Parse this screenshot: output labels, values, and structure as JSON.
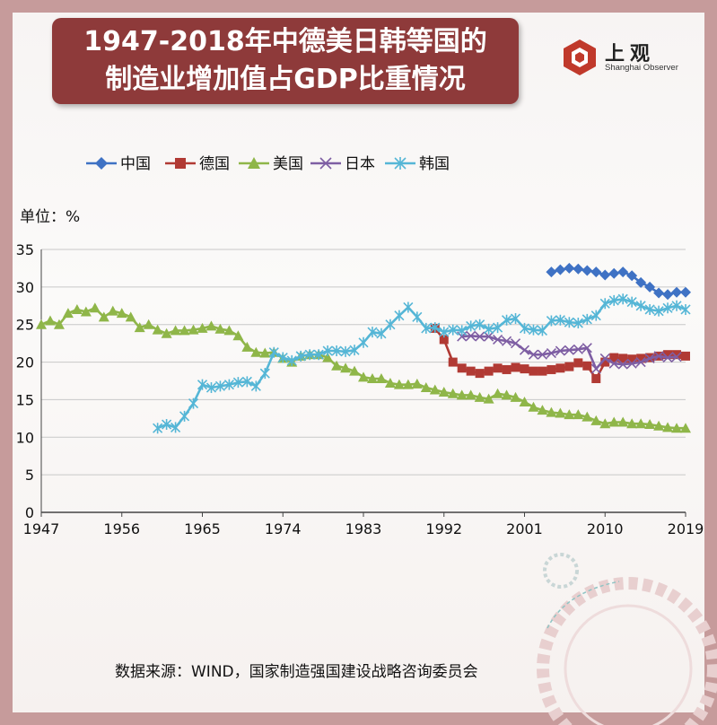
{
  "title": {
    "line1": "1947-2018年中德美日韩等国的",
    "line2": "制造业增加值占GDP比重情况"
  },
  "logo": {
    "name_cn": "上观",
    "name_en": "Shanghai Observer"
  },
  "unit_label": "单位：%",
  "source_text": "数据来源：WIND，国家制造强国建设战略咨询委员会",
  "chart_data": {
    "type": "line",
    "x_ticks": [
      1947,
      1956,
      1965,
      1974,
      1983,
      1992,
      2001,
      2010,
      2019
    ],
    "y_ticks": [
      0,
      5,
      10,
      15,
      20,
      25,
      30,
      35
    ],
    "xlim": [
      1947,
      2019
    ],
    "ylim": [
      0,
      35
    ],
    "grid": true,
    "legend_position": "top",
    "series": [
      {
        "name": "中国",
        "color": "#3f72c4",
        "marker": "diamond",
        "x": [
          2004,
          2005,
          2006,
          2007,
          2008,
          2009,
          2010,
          2011,
          2012,
          2013,
          2014,
          2015,
          2016,
          2017,
          2018,
          2019
        ],
        "y": [
          32.0,
          32.3,
          32.5,
          32.4,
          32.2,
          32.0,
          31.6,
          31.8,
          32.0,
          31.5,
          30.6,
          30.0,
          29.2,
          29.0,
          29.3,
          29.3
        ]
      },
      {
        "name": "德国",
        "color": "#b13a34",
        "marker": "square",
        "x": [
          1991,
          1992,
          1993,
          1994,
          1995,
          1996,
          1997,
          1998,
          1999,
          2000,
          2001,
          2002,
          2003,
          2004,
          2005,
          2006,
          2007,
          2008,
          2009,
          2010,
          2011,
          2012,
          2013,
          2014,
          2015,
          2016,
          2017,
          2018,
          2019
        ],
        "y": [
          24.5,
          23.0,
          20.0,
          19.2,
          18.8,
          18.5,
          18.8,
          19.2,
          19.0,
          19.3,
          19.1,
          18.8,
          18.8,
          19.0,
          19.2,
          19.4,
          19.9,
          19.5,
          17.8,
          20.0,
          20.6,
          20.5,
          20.4,
          20.5,
          20.6,
          20.8,
          21.0,
          21.0,
          20.8
        ]
      },
      {
        "name": "美国",
        "color": "#8fb649",
        "marker": "triangle",
        "x": [
          1947,
          1948,
          1949,
          1950,
          1951,
          1952,
          1953,
          1954,
          1955,
          1956,
          1957,
          1958,
          1959,
          1960,
          1961,
          1962,
          1963,
          1964,
          1965,
          1966,
          1967,
          1968,
          1969,
          1970,
          1971,
          1972,
          1973,
          1974,
          1975,
          1976,
          1977,
          1978,
          1979,
          1980,
          1981,
          1982,
          1983,
          1984,
          1985,
          1986,
          1987,
          1988,
          1989,
          1990,
          1991,
          1992,
          1993,
          1994,
          1995,
          1996,
          1997,
          1998,
          1999,
          2000,
          2001,
          2002,
          2003,
          2004,
          2005,
          2006,
          2007,
          2008,
          2009,
          2010,
          2011,
          2012,
          2013,
          2014,
          2015,
          2016,
          2017,
          2018,
          2019
        ],
        "y": [
          25.0,
          25.5,
          25.0,
          26.5,
          27.0,
          26.7,
          27.2,
          26.0,
          26.8,
          26.5,
          26.0,
          24.6,
          25.0,
          24.3,
          23.8,
          24.2,
          24.2,
          24.3,
          24.5,
          24.8,
          24.4,
          24.2,
          23.5,
          22.0,
          21.3,
          21.2,
          21.3,
          20.5,
          20.0,
          20.8,
          21.0,
          21.0,
          20.6,
          19.5,
          19.2,
          18.8,
          18.0,
          17.8,
          17.8,
          17.2,
          17.0,
          17.0,
          17.1,
          16.6,
          16.3,
          16.0,
          15.8,
          15.6,
          15.6,
          15.3,
          15.1,
          15.8,
          15.6,
          15.3,
          14.7,
          14.0,
          13.6,
          13.3,
          13.2,
          13.0,
          13.0,
          12.7,
          12.2,
          11.8,
          12.0,
          12.0,
          11.8,
          11.8,
          11.7,
          11.5,
          11.3,
          11.2,
          11.2
        ]
      },
      {
        "name": "日本",
        "color": "#7e5ea3",
        "marker": "cross",
        "x": [
          1994,
          1995,
          1996,
          1997,
          1998,
          1999,
          2000,
          2001,
          2002,
          2003,
          2004,
          2005,
          2006,
          2007,
          2008,
          2009,
          2010,
          2011,
          2012,
          2013,
          2014,
          2015,
          2016,
          2017,
          2018
        ],
        "y": [
          23.4,
          23.5,
          23.4,
          23.4,
          23.0,
          22.8,
          22.5,
          21.6,
          21.0,
          21.0,
          21.2,
          21.5,
          21.6,
          21.7,
          21.9,
          19.1,
          20.5,
          19.8,
          19.7,
          19.8,
          20.0,
          20.5,
          20.8,
          20.6,
          20.7
        ]
      },
      {
        "name": "韩国",
        "color": "#55b6d6",
        "marker": "asterisk",
        "x": [
          1960,
          1961,
          1962,
          1963,
          1964,
          1965,
          1966,
          1967,
          1968,
          1969,
          1970,
          1971,
          1972,
          1973,
          1974,
          1975,
          1976,
          1977,
          1978,
          1979,
          1980,
          1981,
          1982,
          1983,
          1984,
          1985,
          1986,
          1987,
          1988,
          1989,
          1990,
          1991,
          1992,
          1993,
          1994,
          1995,
          1996,
          1997,
          1998,
          1999,
          2000,
          2001,
          2002,
          2003,
          2004,
          2005,
          2006,
          2007,
          2008,
          2009,
          2010,
          2011,
          2012,
          2013,
          2014,
          2015,
          2016,
          2017,
          2018,
          2019
        ],
        "y": [
          11.2,
          11.7,
          11.3,
          12.8,
          14.5,
          17.0,
          16.6,
          16.8,
          17.0,
          17.3,
          17.4,
          16.8,
          18.5,
          21.3,
          20.6,
          20.2,
          20.8,
          21.0,
          21.0,
          21.5,
          21.5,
          21.4,
          21.6,
          22.6,
          24.0,
          23.8,
          25.0,
          26.2,
          27.3,
          26.0,
          24.5,
          24.6,
          24.0,
          24.3,
          24.2,
          24.8,
          25.0,
          24.4,
          24.6,
          25.6,
          25.8,
          24.5,
          24.3,
          24.2,
          25.5,
          25.6,
          25.3,
          25.2,
          25.7,
          26.2,
          27.8,
          28.2,
          28.4,
          28.0,
          27.5,
          27.0,
          26.8,
          27.2,
          27.5,
          27.0
        ]
      }
    ]
  }
}
